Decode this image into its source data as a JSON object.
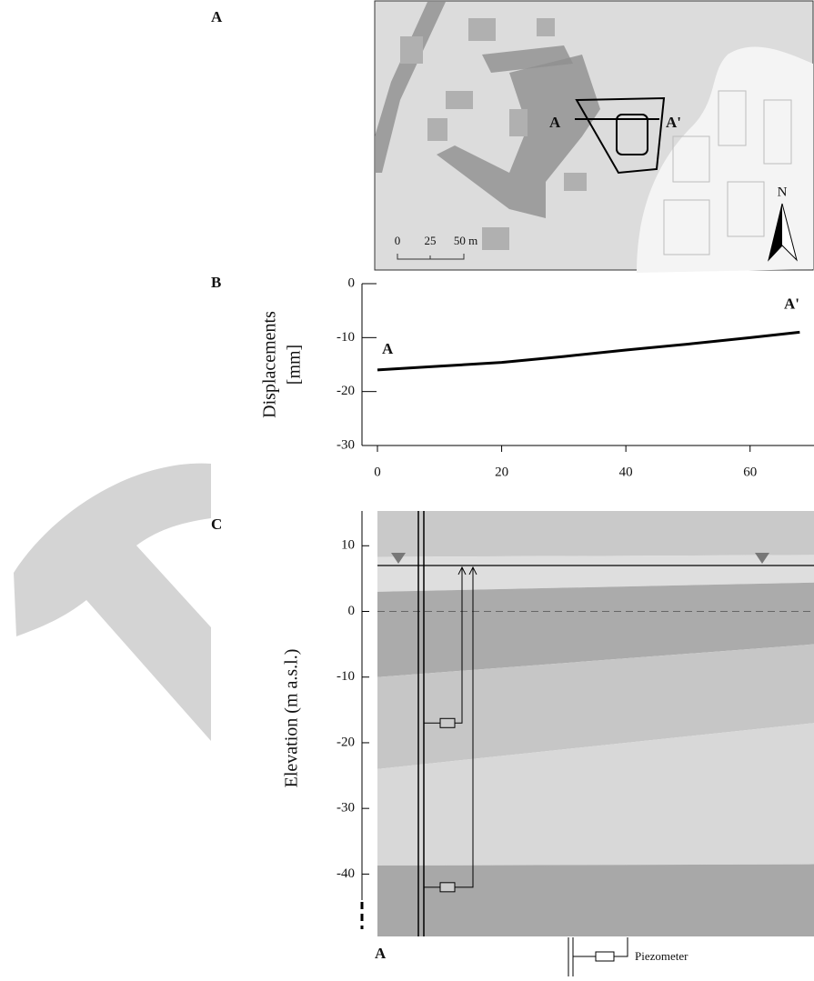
{
  "panels": [
    "A",
    "B",
    "C"
  ],
  "map": {
    "section_start": "A",
    "section_end": "A'",
    "north": "N",
    "scale_labels": [
      "0",
      "25",
      "50 m"
    ]
  },
  "chart_data": [
    {
      "type": "line",
      "ylabel": [
        "Displacements",
        "[mm]"
      ],
      "x": [
        0,
        10,
        20,
        30,
        40,
        50,
        60,
        68
      ],
      "series": [
        {
          "color": "#000000",
          "values": [
            -16,
            -15.3,
            -14.6,
            -13.5,
            -12.3,
            -11.2,
            -10,
            -9
          ]
        }
      ],
      "xlim": [
        0,
        70
      ],
      "ylim": [
        -30,
        0
      ],
      "xticks": [
        0,
        20,
        40,
        60
      ],
      "yticks": [
        0,
        -10,
        -20,
        -30
      ],
      "start_label": "A",
      "end_label": "A'"
    },
    {
      "type": "section",
      "ylabel": "Elevation (m a.s.l.)",
      "ylim": [
        -49.5,
        15.3
      ],
      "yticks": [
        10,
        0,
        -10,
        -20,
        -30,
        -40
      ],
      "water_table": 7,
      "piezometers": [
        -17,
        -42
      ],
      "layers": [
        {
          "top": [
            15.3,
            15.3
          ],
          "color": "#c9c9c9"
        },
        {
          "top": [
            8.3,
            8.6
          ],
          "color": "#dedede"
        },
        {
          "top": [
            3,
            4.4
          ],
          "color": "#ababab"
        },
        {
          "top": [
            -10,
            -5
          ],
          "color": "#c6c6c6"
        },
        {
          "top": [
            -24,
            -17
          ],
          "color": "#d8d8d8"
        },
        {
          "top": [
            -38.7,
            -38.5
          ],
          "color": "#a8a8a8"
        }
      ],
      "start_label": "A",
      "legend": "Piezometer"
    }
  ]
}
